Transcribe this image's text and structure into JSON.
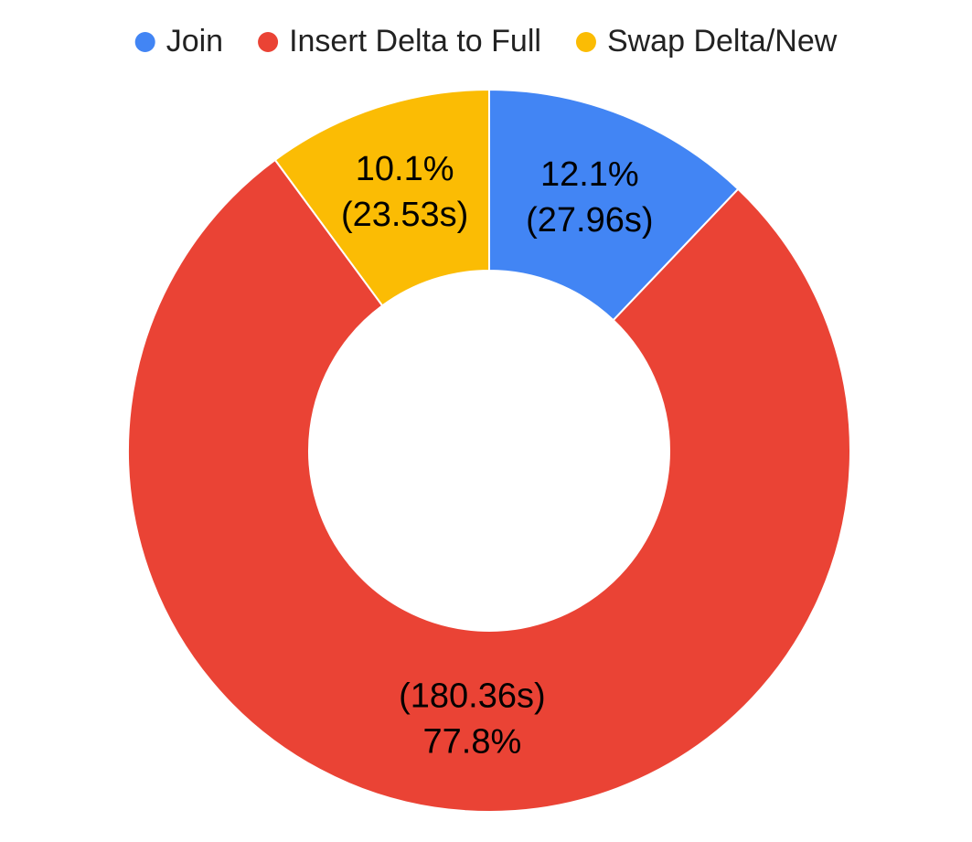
{
  "chart_data": {
    "type": "donut",
    "categories": [
      "Join",
      "Insert Delta to Full",
      "Swap Delta/New"
    ],
    "values": [
      12.1,
      77.8,
      10.1
    ],
    "value_labels": [
      "12.1%",
      "77.8%",
      "10.1%"
    ],
    "durations": [
      27.96,
      180.36,
      23.53
    ],
    "duration_labels": [
      "(27.96s)",
      "(180.36s)",
      "(23.53s)"
    ],
    "colors": [
      "#4285f4",
      "#ea4335",
      "#fbbc04"
    ],
    "legend": "top"
  }
}
